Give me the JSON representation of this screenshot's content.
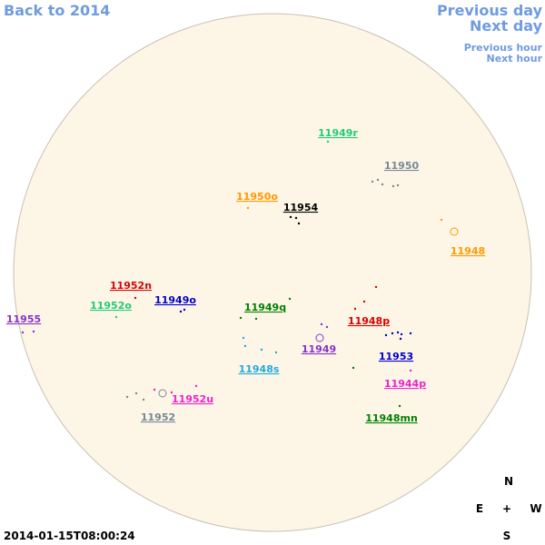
{
  "nav": {
    "back": "Back to 2014",
    "previous_day": "Previous day",
    "next_day": "Next day",
    "previous_hour": "Previous hour",
    "next_hour": "Next hour"
  },
  "regions": [
    {
      "label": "11949r",
      "color": "#22cc77"
    },
    {
      "label": "11950",
      "color": "#778899"
    },
    {
      "label": "11950o",
      "color": "#ff9900"
    },
    {
      "label": "11954",
      "color": "#000000"
    },
    {
      "label": "11948",
      "color": "#ff9900"
    },
    {
      "label": "11952n",
      "color": "#dd0000"
    },
    {
      "label": "11952o",
      "color": "#22cc77"
    },
    {
      "label": "11949o",
      "color": "#0000cc"
    },
    {
      "label": "11949q",
      "color": "#008000"
    },
    {
      "label": "11955",
      "color": "#8833cc"
    },
    {
      "label": "11948p",
      "color": "#dd0000"
    },
    {
      "label": "11949",
      "color": "#8833cc"
    },
    {
      "label": "11953",
      "color": "#0000cc"
    },
    {
      "label": "11948s",
      "color": "#22aadd"
    },
    {
      "label": "11944p",
      "color": "#ee22cc"
    },
    {
      "label": "11952u",
      "color": "#ee22cc"
    },
    {
      "label": "11952",
      "color": "#778899"
    },
    {
      "label": "11948mn",
      "color": "#008000"
    }
  ],
  "compass": {
    "north": "N",
    "east": "E",
    "center": "+",
    "west": "W",
    "south": "S"
  },
  "timestamp": "2014-01-15T08:00:24"
}
